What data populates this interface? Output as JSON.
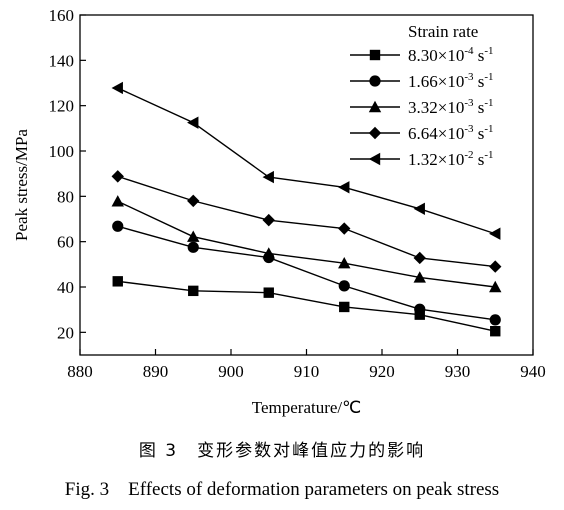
{
  "chart_data": {
    "type": "line",
    "xlabel": "Temperature/℃",
    "ylabel": "Peak stress/MPa",
    "xlim": [
      880,
      940
    ],
    "ylim": [
      10,
      160
    ],
    "xticks": [
      880,
      890,
      900,
      910,
      920,
      930,
      940
    ],
    "yticks": [
      20,
      40,
      60,
      80,
      100,
      120,
      140,
      160
    ],
    "x": [
      885,
      895,
      905,
      915,
      925,
      935
    ],
    "legend_title": "Strain rate",
    "legend_position": "top-right",
    "grid": false,
    "series": [
      {
        "name": "8.30×10-4 s-1",
        "base": "8.30×10",
        "exp": "-4",
        "unit": "s",
        "unit_exp": "-1",
        "marker": "square",
        "values": [
          42.5,
          38.3,
          37.5,
          31.2,
          27.8,
          20.5
        ]
      },
      {
        "name": "1.66×10-3 s-1",
        "base": "1.66×10",
        "exp": "-3",
        "unit": "s",
        "unit_exp": "-1",
        "marker": "circle",
        "values": [
          66.8,
          57.5,
          53.0,
          40.5,
          30.2,
          25.5
        ]
      },
      {
        "name": "3.32×10-3 s-1",
        "base": "3.32×10",
        "exp": "-3",
        "unit": "s",
        "unit_exp": "-1",
        "marker": "triangle-up",
        "values": [
          77.8,
          62.2,
          54.8,
          50.5,
          44.2,
          40.0
        ]
      },
      {
        "name": "6.64×10-3 s-1",
        "base": "6.64×10",
        "exp": "-3",
        "unit": "s",
        "unit_exp": "-1",
        "marker": "diamond",
        "values": [
          88.8,
          78.0,
          69.5,
          65.8,
          52.8,
          49.0
        ]
      },
      {
        "name": "1.32×10-2 s-1",
        "base": "1.32×10",
        "exp": "-2",
        "unit": "s",
        "unit_exp": "-1",
        "marker": "triangle-left",
        "values": [
          127.8,
          112.5,
          88.5,
          84.0,
          74.5,
          63.5
        ]
      }
    ]
  },
  "caption_cn": "图 3　变形参数对峰值应力的影响",
  "caption_en": "Fig. 3　Effects of deformation parameters on peak stress"
}
